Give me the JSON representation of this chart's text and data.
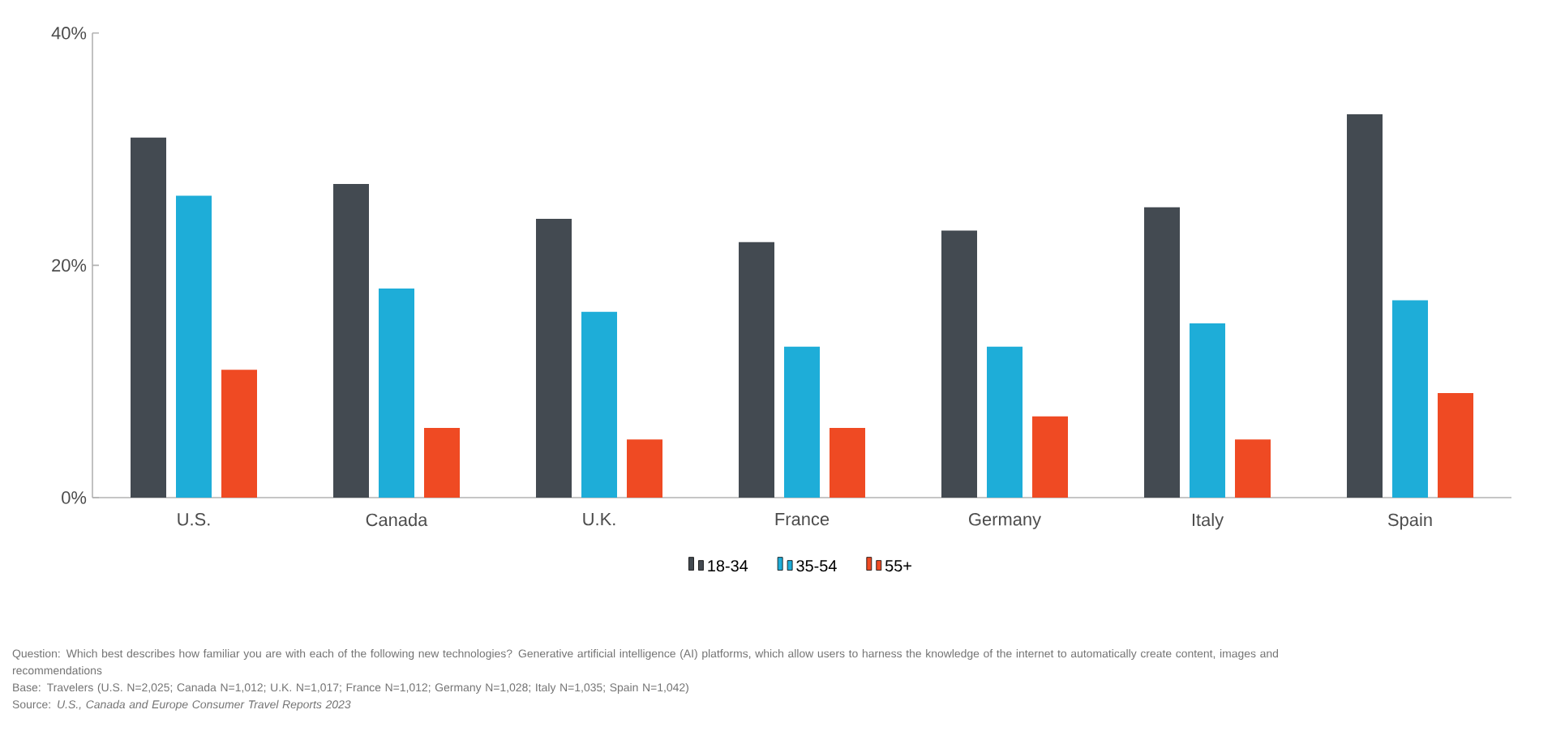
{
  "chart_data": {
    "type": "bar",
    "categories": [
      "U.S.",
      "Canada",
      "U.K.",
      "France",
      "Germany",
      "Italy",
      "Spain"
    ],
    "series": [
      {
        "name": "18-34",
        "color": "#434a51",
        "values": [
          31,
          27,
          24,
          22,
          23,
          25,
          33
        ]
      },
      {
        "name": "35-54",
        "color": "#1eadd8",
        "values": [
          26,
          18,
          16,
          13,
          13,
          15,
          17
        ]
      },
      {
        "name": "55+",
        "color": "#ef4a23",
        "values": [
          11,
          6,
          5,
          6,
          7,
          5,
          9
        ]
      }
    ],
    "ylim": [
      0,
      40
    ],
    "yticks": [
      {
        "value": 0,
        "label": "0%"
      },
      {
        "value": 20,
        "label": "20%"
      },
      {
        "value": 40,
        "label": "40%"
      }
    ],
    "legend": "bottom",
    "annotations": [
      "Question: Which best describes how familiar you are with each of the following new technologies? Generative artificial intelligence (AI) platforms, which allow users to harness the knowledge of the internet to automatically create content, images and recommendations",
      "Base: Travelers (U.S. N=2,025; Canada N=1,012; U.K. N=1,017; France N=1,012; Germany N=1,028; Italy N=1,035; Spain N=1,042)",
      "Source: *U.S., Canada and Europe Consumer Travel Reports 2023*"
    ]
  }
}
